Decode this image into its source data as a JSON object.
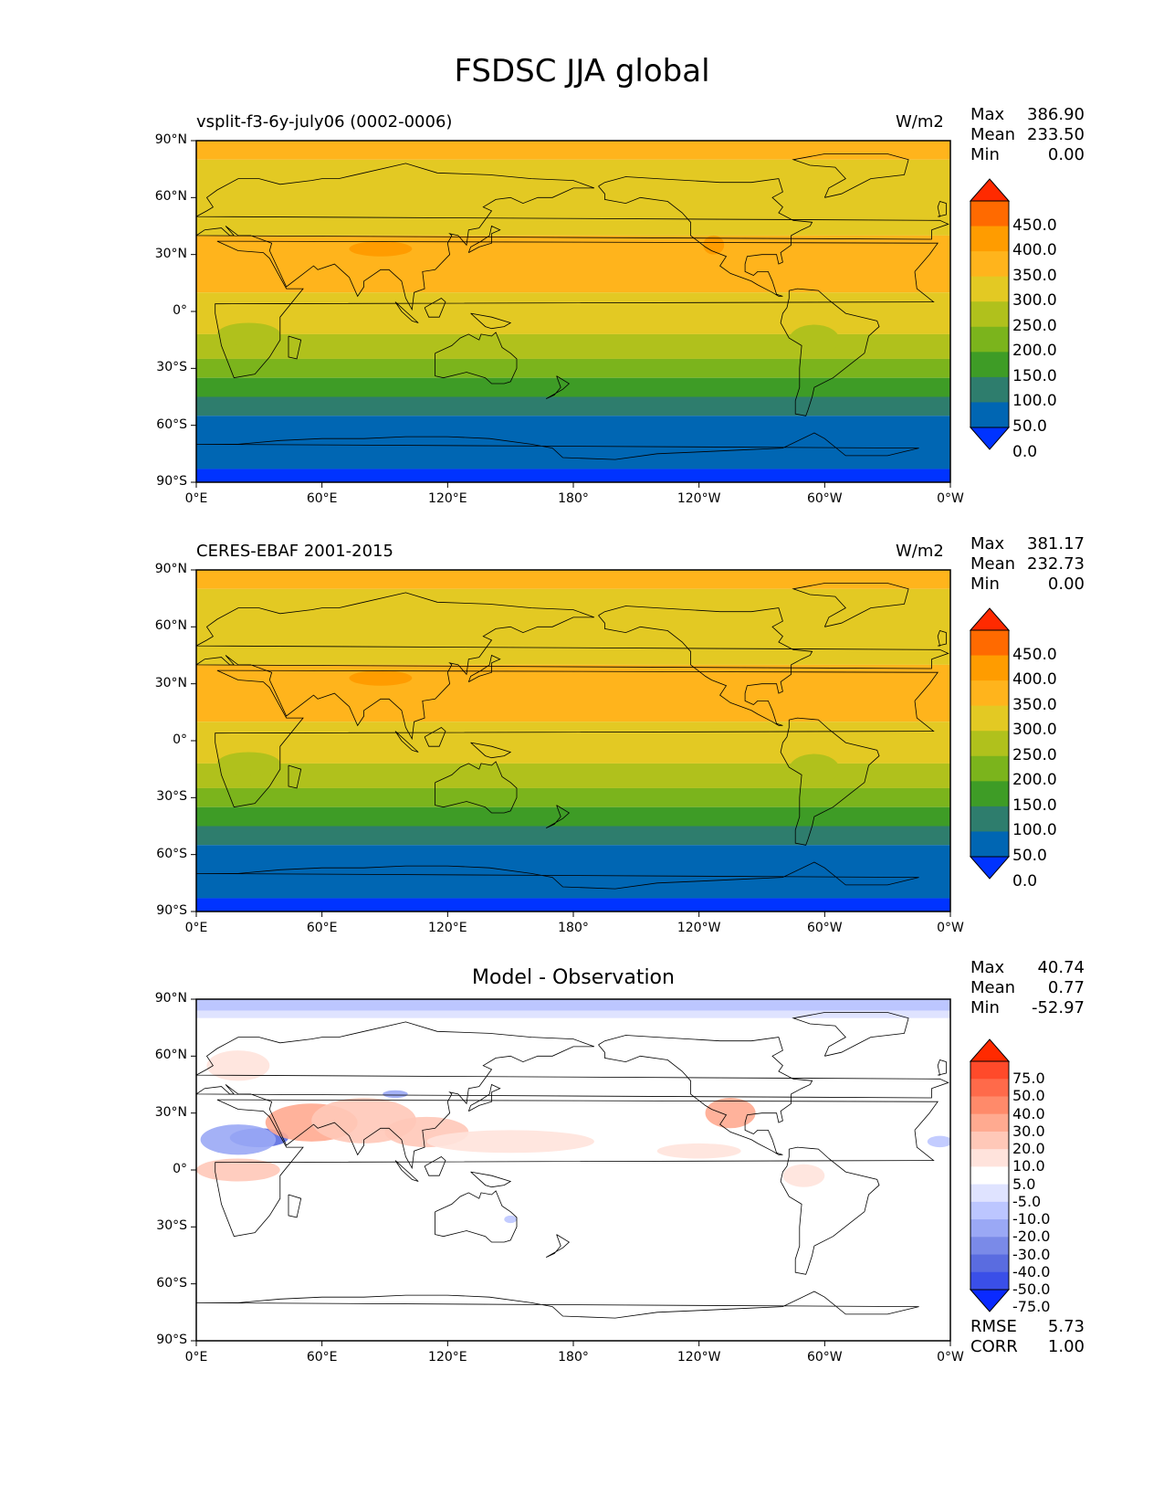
{
  "figure": {
    "title": "FSDSC JJA global"
  },
  "panels": [
    {
      "id": "model",
      "left_title": "vsplit-f3-6y-july06 (0002-0006)",
      "center_title": "",
      "units": "W/m2",
      "stats": {
        "max_label": "Max",
        "max": "386.90",
        "mean_label": "Mean",
        "mean": "233.50",
        "min_label": "Min",
        "min": "0.00"
      },
      "colorbar": {
        "labels": [
          "450.0",
          "400.0",
          "350.0",
          "300.0",
          "250.0",
          "200.0",
          "150.0",
          "100.0",
          "50.0",
          "0.0"
        ],
        "colors": [
          "#ff2a00",
          "#ff6a00",
          "#ff9c00",
          "#ffb41c",
          "#e3c923",
          "#b0c11c",
          "#7bb41c",
          "#3e9c26",
          "#2e7d6d",
          "#0066b3",
          "#0033ff"
        ]
      },
      "zonal_bands": [
        {
          "lat_from": 90,
          "lat_to": 80,
          "color": "#ffb41c"
        },
        {
          "lat_from": 80,
          "lat_to": 40,
          "color": "#e3c923"
        },
        {
          "lat_from": 40,
          "lat_to": 10,
          "color": "#ffb41c"
        },
        {
          "lat_from": 10,
          "lat_to": -12,
          "color": "#e3c923"
        },
        {
          "lat_from": -12,
          "lat_to": -25,
          "color": "#b0c11c"
        },
        {
          "lat_from": -25,
          "lat_to": -35,
          "color": "#7bb41c"
        },
        {
          "lat_from": -35,
          "lat_to": -45,
          "color": "#3e9c26"
        },
        {
          "lat_from": -45,
          "lat_to": -55,
          "color": "#2e7d6d"
        },
        {
          "lat_from": -55,
          "lat_to": -83,
          "color": "#0066b3"
        },
        {
          "lat_from": -83,
          "lat_to": -90,
          "color": "#0033ff"
        }
      ]
    },
    {
      "id": "obs",
      "left_title": "CERES-EBAF 2001-2015",
      "center_title": "",
      "units": "W/m2",
      "stats": {
        "max_label": "Max",
        "max": "381.17",
        "mean_label": "Mean",
        "mean": "232.73",
        "min_label": "Min",
        "min": "0.00"
      },
      "colorbar": {
        "labels": [
          "450.0",
          "400.0",
          "350.0",
          "300.0",
          "250.0",
          "200.0",
          "150.0",
          "100.0",
          "50.0",
          "0.0"
        ],
        "colors": [
          "#ff2a00",
          "#ff6a00",
          "#ff9c00",
          "#ffb41c",
          "#e3c923",
          "#b0c11c",
          "#7bb41c",
          "#3e9c26",
          "#2e7d6d",
          "#0066b3",
          "#0033ff"
        ]
      },
      "zonal_bands": [
        {
          "lat_from": 90,
          "lat_to": 80,
          "color": "#ffb41c"
        },
        {
          "lat_from": 80,
          "lat_to": 40,
          "color": "#e3c923"
        },
        {
          "lat_from": 40,
          "lat_to": 10,
          "color": "#ffb41c"
        },
        {
          "lat_from": 10,
          "lat_to": -12,
          "color": "#e3c923"
        },
        {
          "lat_from": -12,
          "lat_to": -25,
          "color": "#b0c11c"
        },
        {
          "lat_from": -25,
          "lat_to": -35,
          "color": "#7bb41c"
        },
        {
          "lat_from": -35,
          "lat_to": -45,
          "color": "#3e9c26"
        },
        {
          "lat_from": -45,
          "lat_to": -55,
          "color": "#2e7d6d"
        },
        {
          "lat_from": -55,
          "lat_to": -83,
          "color": "#0066b3"
        },
        {
          "lat_from": -83,
          "lat_to": -90,
          "color": "#0033ff"
        }
      ]
    },
    {
      "id": "diff",
      "left_title": "",
      "center_title": "Model - Observation",
      "units": "",
      "stats": {
        "max_label": "Max",
        "max": "40.74",
        "mean_label": "Mean",
        "mean": "0.77",
        "min_label": "Min",
        "min": "-52.97"
      },
      "colorbar": {
        "labels": [
          "75.0",
          "50.0",
          "40.0",
          "30.0",
          "20.0",
          "10.0",
          "5.0",
          "-5.0",
          "-10.0",
          "-20.0",
          "-30.0",
          "-40.0",
          "-50.0",
          "-75.0"
        ],
        "colors": [
          "#ff2a00",
          "#ff4a2a",
          "#ff6a4a",
          "#ff8a6a",
          "#ffaa90",
          "#ffc8b8",
          "#ffe3dc",
          "#ffffff",
          "#dfe3ff",
          "#bcc6ff",
          "#9aa8f5",
          "#7a8ae8",
          "#5a6ce0",
          "#3a4fe8",
          "#0a2aff"
        ]
      },
      "zonal_bands": [
        {
          "lat_from": 90,
          "lat_to": 84,
          "color": "#bcc6ff"
        },
        {
          "lat_from": 84,
          "lat_to": 80,
          "color": "#dfe3ff"
        },
        {
          "lat_from": 80,
          "lat_to": -90,
          "color": "#ffffff"
        }
      ],
      "rmse_label": "RMSE",
      "rmse": "5.73",
      "corr_label": "CORR",
      "corr": "1.00"
    }
  ],
  "axes": {
    "lat_ticks": [
      "90°N",
      "60°N",
      "30°N",
      "0°",
      "30°S",
      "60°S",
      "90°S"
    ],
    "lon_ticks": [
      "0°E",
      "60°E",
      "120°E",
      "180°",
      "120°W",
      "60°W",
      "0°W"
    ]
  },
  "colors": {
    "coastline": "#000000",
    "frame": "#000000"
  }
}
